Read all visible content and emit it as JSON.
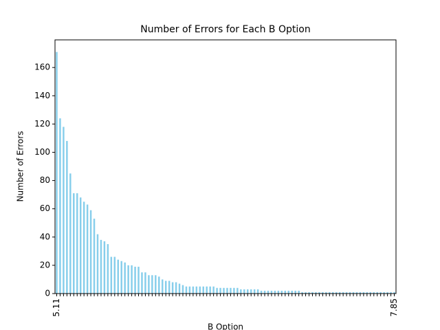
{
  "chart_data": {
    "type": "bar",
    "title": "Number of Errors for Each B Option",
    "xlabel": "B Option",
    "ylabel": "Number of Errors",
    "categories": [
      "5.11",
      null,
      null,
      null,
      null,
      null,
      null,
      null,
      null,
      null,
      null,
      null,
      null,
      null,
      null,
      null,
      null,
      null,
      null,
      null,
      null,
      null,
      null,
      null,
      null,
      null,
      null,
      null,
      null,
      null,
      null,
      null,
      null,
      null,
      null,
      null,
      null,
      null,
      null,
      null,
      null,
      null,
      null,
      null,
      null,
      null,
      null,
      null,
      null,
      null,
      null,
      null,
      null,
      null,
      null,
      null,
      null,
      null,
      null,
      null,
      null,
      null,
      null,
      null,
      null,
      null,
      null,
      null,
      null,
      null,
      null,
      null,
      null,
      null,
      null,
      null,
      null,
      null,
      null,
      null,
      null,
      null,
      null,
      null,
      null,
      null,
      null,
      null,
      null,
      null,
      null,
      null,
      null,
      null,
      null,
      null,
      null,
      null,
      null,
      "7.85"
    ],
    "values": [
      171,
      124,
      118,
      108,
      85,
      71,
      71,
      68,
      65,
      63,
      59,
      53,
      42,
      38,
      37,
      35,
      26,
      26,
      24,
      23,
      22,
      20,
      20,
      19,
      19,
      15,
      15,
      13,
      13,
      13,
      12,
      10,
      9,
      9,
      8,
      8,
      7,
      6,
      5,
      5,
      5,
      5,
      5,
      5,
      5,
      5,
      5,
      4,
      4,
      4,
      4,
      4,
      4,
      4,
      3,
      3,
      3,
      3,
      3,
      3,
      2,
      2,
      2,
      2,
      2,
      2,
      2,
      2,
      2,
      2,
      2,
      2,
      1,
      1,
      1,
      1,
      1,
      1,
      1,
      1,
      1,
      1,
      1,
      1,
      1,
      1,
      1,
      1,
      1,
      1,
      1,
      1,
      1,
      1,
      1,
      1,
      1,
      1,
      1,
      1
    ],
    "color": "#87ceeb",
    "ylim": [
      0,
      179.55
    ],
    "yticks": [
      0,
      20,
      40,
      60,
      80,
      100,
      120,
      140,
      160
    ],
    "grid": false
  }
}
